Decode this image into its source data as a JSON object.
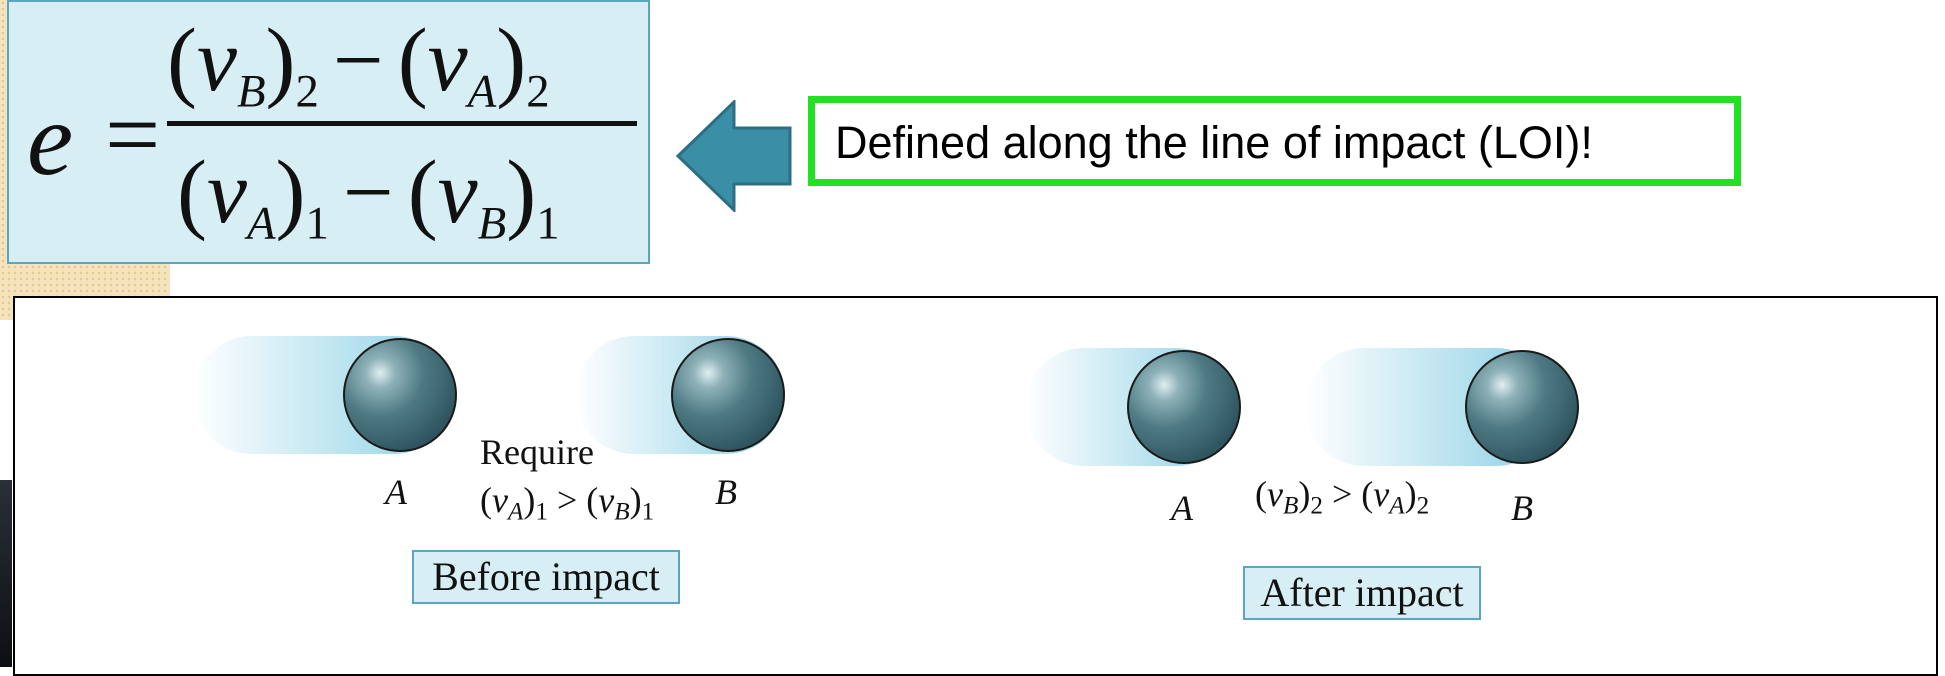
{
  "formula": {
    "lhs": "e",
    "equals": "=",
    "numerator": {
      "open1": "(",
      "var1": "v",
      "sub1": "B",
      "close1": ")",
      "idx1": "2",
      "minus": "−",
      "open2": "(",
      "var2": "v",
      "sub2": "A",
      "close2": ")",
      "idx2": "2"
    },
    "denominator": {
      "open1": "(",
      "var1": "v",
      "sub1": "A",
      "close1": ")",
      "idx1": "1",
      "minus": "−",
      "open2": "(",
      "var2": "v",
      "sub2": "B",
      "close2": ")",
      "idx2": "1"
    }
  },
  "callout": {
    "text": "Defined along the line of impact (LOI)!",
    "border_color": "#22e022"
  },
  "diagram": {
    "before": {
      "ball_a_label": "A",
      "ball_b_label": "B",
      "require_label": "Require",
      "condition": {
        "lhs_var": "v",
        "lhs_sub": "A",
        "lhs_idx": "1",
        "op": ">",
        "rhs_var": "v",
        "rhs_sub": "B",
        "rhs_idx": "1"
      },
      "caption": "Before impact"
    },
    "after": {
      "ball_a_label": "A",
      "ball_b_label": "B",
      "condition": {
        "lhs_var": "v",
        "lhs_sub": "B",
        "lhs_idx": "2",
        "op": ">",
        "rhs_var": "v",
        "rhs_sub": "A",
        "rhs_idx": "2"
      },
      "caption": "After impact"
    }
  },
  "colors": {
    "formula_bg": "#d7eef5",
    "arrow_fill": "#3a8ea6",
    "ball": "#3b6670",
    "motion_streak": "#a5daeb"
  },
  "icons": {
    "arrow": "left-arrow-icon"
  }
}
